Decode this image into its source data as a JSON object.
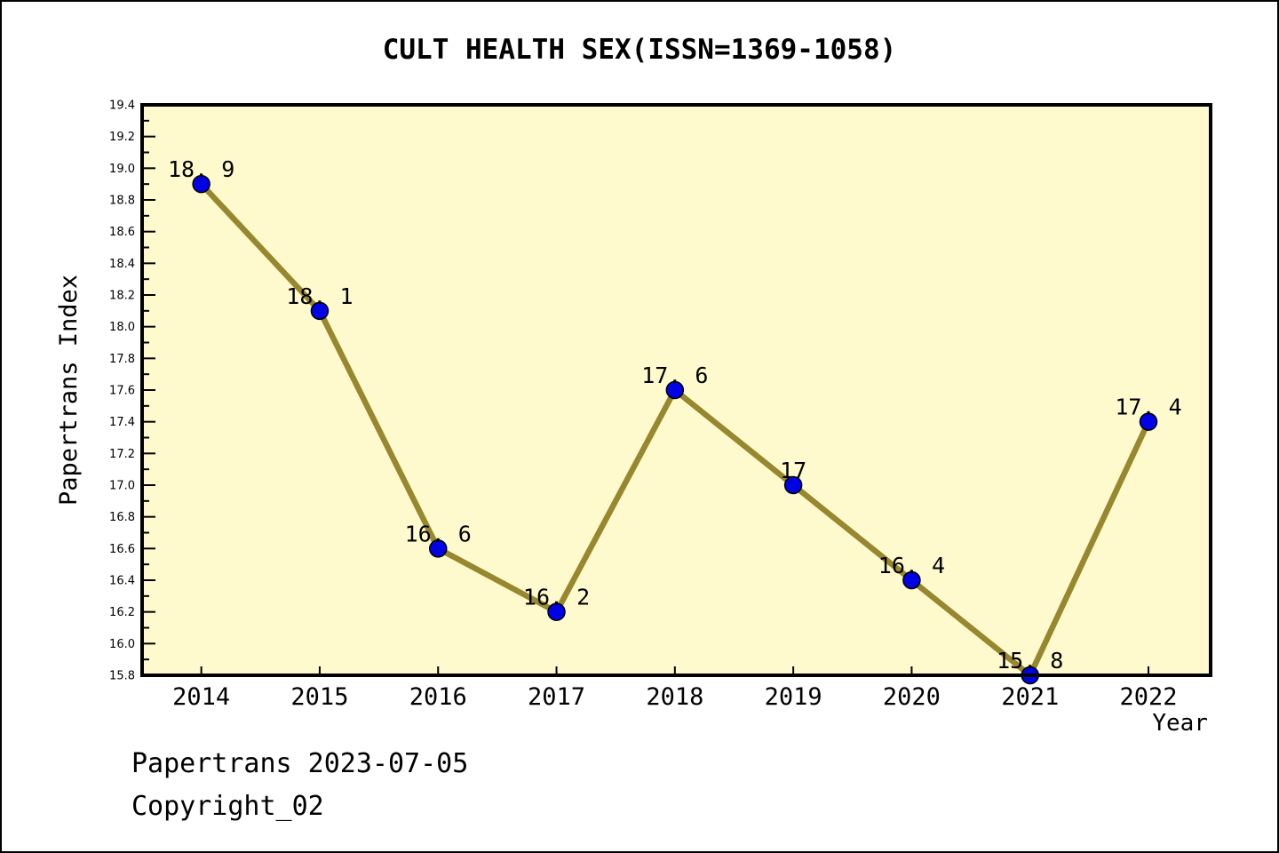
{
  "title": "CULT HEALTH SEX(ISSN=1369-1058)",
  "footer": {
    "line1": "Papertrans 2023-07-05",
    "line2": "Copyright_02"
  },
  "chart_data": {
    "type": "line",
    "title": "CULT HEALTH SEX(ISSN=1369-1058)",
    "xlabel": "Year",
    "ylabel": "Papertrans Index",
    "x": [
      2014,
      2015,
      2016,
      2017,
      2018,
      2019,
      2020,
      2021,
      2022
    ],
    "series": [
      {
        "name": "Papertrans Index",
        "values": [
          18.9,
          18.1,
          16.6,
          16.2,
          17.6,
          17.0,
          16.4,
          15.8,
          17.4
        ]
      }
    ],
    "point_labels": [
      "18. 9",
      "18. 1",
      "16. 6",
      "16. 2",
      "17. 6",
      "17",
      "16. 4",
      "15. 8",
      "17. 4"
    ],
    "xlim": [
      2013.5,
      2022.525
    ],
    "ylim": [
      15.8,
      19.4
    ],
    "x_ticks": [
      2014,
      2015,
      2016,
      2017,
      2018,
      2019,
      2020,
      2021,
      2022
    ],
    "y_major_tick_step": 0.2,
    "y_minor_tick_step": 0.1,
    "grid": false,
    "legend": "none",
    "colors": {
      "line": "#97882F",
      "marker_fill": "#0101E6",
      "marker_edge": "#000000",
      "plot_background": "#FEFACD",
      "frame": "#000000",
      "text": "#000000"
    }
  }
}
